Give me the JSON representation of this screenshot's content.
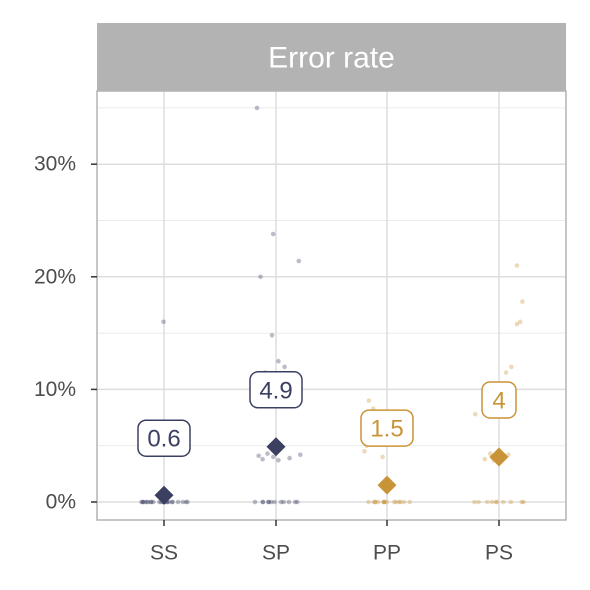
{
  "chart_data": {
    "type": "scatter",
    "facet_title": "Error rate",
    "categories": [
      "SS",
      "SP",
      "PP",
      "PS"
    ],
    "y_ticks": [
      0,
      10,
      20,
      30
    ],
    "y_tick_labels": [
      "0%",
      "10%",
      "20%",
      "30%"
    ],
    "ylim": [
      -1.6,
      36.5
    ],
    "grid": true,
    "colors": {
      "SS": "#3b4060",
      "SP": "#3b4060",
      "PP": "#c99438",
      "PS": "#c99438"
    },
    "points": {
      "SS": [
        16.0,
        0,
        0,
        0,
        0,
        0,
        0,
        0,
        0,
        0,
        0,
        0,
        0,
        0,
        0,
        0,
        0,
        0,
        0,
        0,
        0,
        0,
        0,
        0
      ],
      "SP": [
        35.0,
        23.8,
        21.4,
        20.0,
        14.8,
        12.5,
        12.0,
        11.5,
        10.5,
        4.2,
        4.0,
        3.8,
        3.7,
        4.3,
        4.1,
        3.9,
        0,
        0,
        0,
        0,
        0,
        0,
        0,
        0,
        0,
        0,
        0,
        0
      ],
      "PP": [
        9.0,
        8.3,
        7.1,
        5.0,
        4.5,
        4.0,
        0,
        0,
        0,
        0,
        0,
        0,
        0,
        0,
        0,
        0,
        0,
        0,
        0,
        0,
        0,
        0
      ],
      "PS": [
        21.0,
        17.8,
        16.0,
        15.8,
        12.0,
        11.5,
        10.0,
        7.8,
        4.3,
        4.0,
        3.8,
        3.7,
        4.2,
        0,
        0,
        0,
        0,
        0,
        0,
        0,
        0,
        0,
        0
      ]
    },
    "means": [
      0.6,
      4.9,
      1.5,
      4
    ],
    "mean_labels": [
      "0.6",
      "4.9",
      "1.5",
      "4"
    ]
  }
}
